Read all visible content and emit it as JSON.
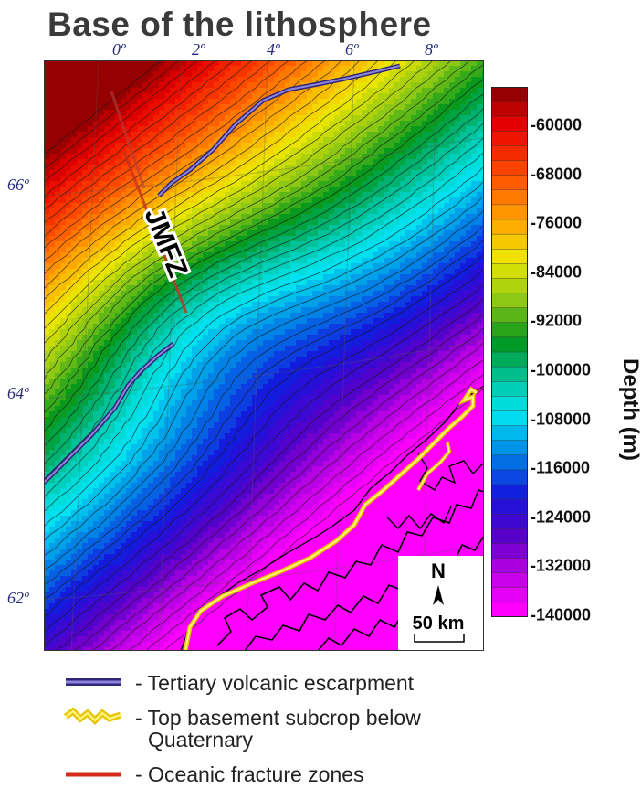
{
  "title": "Base of the lithosphere",
  "lon_labels": [
    "0º",
    "2º",
    "4º",
    "6º",
    "8º"
  ],
  "lat_labels": [
    "66º",
    "64º",
    "62º"
  ],
  "feature_label": "JMFZ",
  "colorbar": {
    "title": "Depth (m)",
    "ticks": [
      "-60000",
      "-68000",
      "-76000",
      "-84000",
      "-92000",
      "-100000",
      "-108000",
      "-116000",
      "-124000",
      "-132000",
      "-140000"
    ]
  },
  "inset": {
    "north": "N",
    "scale": "50 km"
  },
  "legend": [
    {
      "text": "- Tertiary volcanic escarpment",
      "icon": "escarpment-line",
      "color": "#5a4fb0"
    },
    {
      "text": "- Top basement subcrop below",
      "text2": "Quaternary",
      "icon": "subcrop-line",
      "color": "#f2d21c"
    },
    {
      "text": "- Oceanic fracture zones",
      "icon": "fracture-line",
      "color": "#d42a1c"
    }
  ],
  "colors": {
    "escarpment": "#5a4fb0",
    "subcrop": "#f2d21c",
    "fracture": "#d42a1c",
    "coast": "#000000",
    "ocean_shallow": "#e80000",
    "ocean_deep": "#ff00ff"
  }
}
